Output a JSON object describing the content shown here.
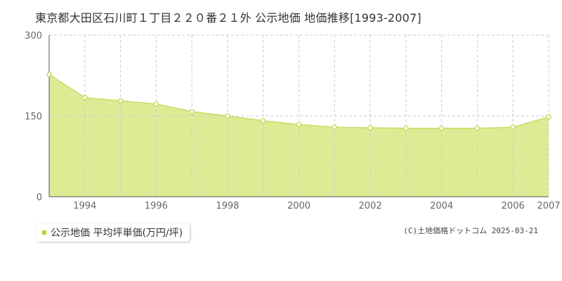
{
  "title": "東京都大田区石川町１丁目２２０番２１外 公示地価 地価推移[1993-2007]",
  "credit": "(C)土地価格ドットコム 2025-03-21",
  "colors": {
    "fill": "#dcec94",
    "line": "#c6dc64",
    "point_stroke": "#c6dc64",
    "point_fill": "#ffffff",
    "grid": "#cccccc",
    "axis_text": "#666666",
    "legend_marker": "#b5d432"
  },
  "chart_data": {
    "type": "area",
    "x": [
      1993,
      1994,
      1995,
      1996,
      1997,
      1998,
      1999,
      2000,
      2001,
      2002,
      2003,
      2004,
      2005,
      2006,
      2007
    ],
    "series": [
      {
        "name": "公示地価 平均坪単価(万円/坪)",
        "values": [
          227,
          184,
          178,
          172,
          158,
          150,
          141,
          134,
          129,
          128,
          127,
          127,
          127,
          129,
          148
        ]
      }
    ],
    "xlim": [
      1993,
      2007
    ],
    "ylim": [
      0,
      300
    ],
    "yticks": [
      0,
      150,
      300
    ],
    "xtick_labels": [
      1994,
      1996,
      1998,
      2000,
      2002,
      2004,
      2006,
      2007
    ],
    "grid": true,
    "legend_position": "bottom-left"
  }
}
